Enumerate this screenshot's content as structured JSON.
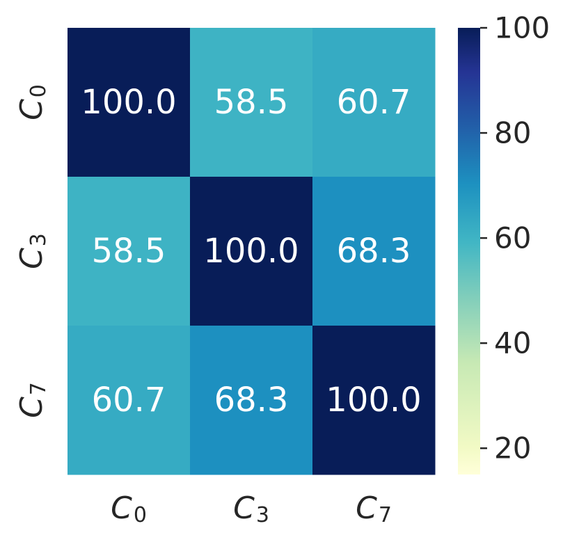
{
  "chart_data": {
    "type": "heatmap",
    "rows": [
      {
        "main": "C",
        "sub": "0"
      },
      {
        "main": "C",
        "sub": "3"
      },
      {
        "main": "C",
        "sub": "7"
      }
    ],
    "cols": [
      {
        "main": "C",
        "sub": "0"
      },
      {
        "main": "C",
        "sub": "3"
      },
      {
        "main": "C",
        "sub": "7"
      }
    ],
    "values": [
      [
        100.0,
        58.5,
        60.7
      ],
      [
        58.5,
        100.0,
        68.3
      ],
      [
        60.7,
        68.3,
        100.0
      ]
    ],
    "value_format": "0.1f",
    "colormap": "YlGnBu",
    "colorbar": {
      "vmin": 15,
      "vmax": 100,
      "ticks": [
        20,
        40,
        60,
        80,
        100
      ]
    },
    "title": "",
    "xlabel": "",
    "ylabel": ""
  }
}
